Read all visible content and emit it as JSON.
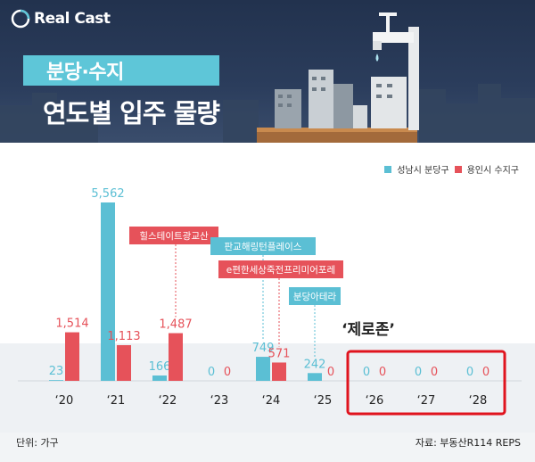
{
  "brand": {
    "name": "Real Cast"
  },
  "title": {
    "line1": "분당·수지",
    "line2": "연도별 입주 물량"
  },
  "legend": [
    {
      "label": "성남시 분당구",
      "color": "#5bbfd4"
    },
    {
      "label": "용인시 수지구",
      "color": "#e6525a"
    }
  ],
  "chart_data": {
    "type": "bar",
    "categories": [
      "‘20",
      "‘21",
      "‘22",
      "‘23",
      "‘24",
      "‘25",
      "‘26",
      "‘27",
      "‘28"
    ],
    "series": [
      {
        "name": "성남시 분당구",
        "color": "#5bbfd4",
        "values": [
          23,
          5562,
          166,
          0,
          749,
          242,
          0,
          0,
          0
        ]
      },
      {
        "name": "용인시 수지구",
        "color": "#e6525a",
        "values": [
          1514,
          1113,
          1487,
          0,
          571,
          0,
          0,
          0,
          0
        ]
      }
    ],
    "value_labels": {
      "성남시 분당구": [
        "23",
        "5,562",
        "166",
        "0",
        "749",
        "242",
        "0",
        "0",
        "0"
      ],
      "용인시 수지구": [
        "1,514",
        "1,113",
        "1,487",
        "0",
        "571",
        "0",
        "0",
        "0",
        "0"
      ]
    },
    "annotations": [
      {
        "text": "힐스테이트광교산",
        "category": "‘22",
        "series": "용인시 수지구",
        "color": "#e6525a"
      },
      {
        "text": "판교해링턴플레이스",
        "category": "‘24",
        "series": "성남시 분당구",
        "color": "#5bbfd4"
      },
      {
        "text": "e편한세상죽전프리미어포레",
        "category": "‘24",
        "series": "용인시 수지구",
        "color": "#e6525a"
      },
      {
        "text": "분당아테라",
        "category": "‘25",
        "series": "성남시 분당구",
        "color": "#5bbfd4"
      }
    ],
    "highlight": {
      "label": "‘제로존’",
      "categories": [
        "‘26",
        "‘27",
        "‘28"
      ],
      "color": "#e0141e"
    }
  },
  "footer": {
    "unit": "단위: 가구",
    "source": "자료: 부동산R114 REPS"
  }
}
